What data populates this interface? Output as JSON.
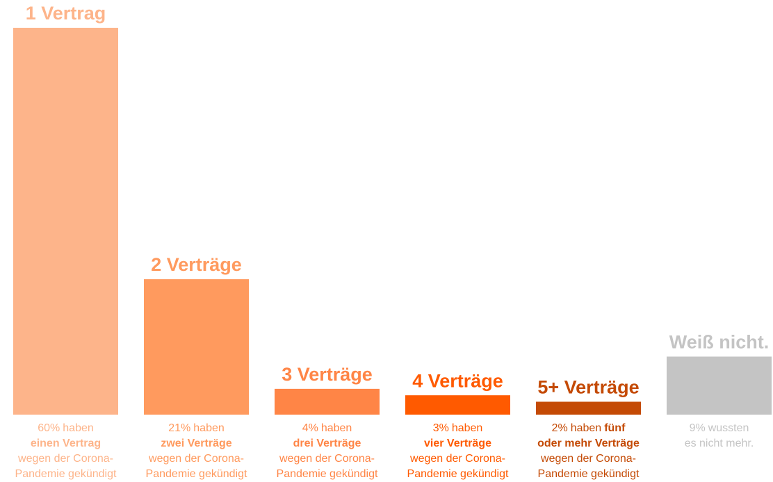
{
  "chart_data": {
    "type": "bar",
    "categories": [
      "1 Vertrag",
      "2 Verträge",
      "3 Verträge",
      "4 Verträge",
      "5+ Verträge",
      "Weiß nicht."
    ],
    "values": [
      60,
      21,
      4,
      3,
      2,
      9
    ],
    "value_labels": [
      "60%",
      "21%",
      "4%",
      "3%",
      "2%",
      "9%"
    ],
    "colors": [
      "#fdb48a",
      "#ff9a5e",
      "#ff8546",
      "#ff5a00",
      "#c44a05",
      "#c4c4c4"
    ],
    "notes": [
      [
        [
          {
            "text": "haben"
          }
        ],
        [
          {
            "text": "einen Vertrag",
            "bold": true
          }
        ],
        [
          {
            "text": "wegen der Corona-"
          }
        ],
        [
          {
            "text": "Pandemie gekündigt"
          }
        ]
      ],
      [
        [
          {
            "text": "haben"
          }
        ],
        [
          {
            "text": "zwei Verträge",
            "bold": true
          }
        ],
        [
          {
            "text": "wegen der Corona-"
          }
        ],
        [
          {
            "text": "Pandemie gekündigt"
          }
        ]
      ],
      [
        [
          {
            "text": "haben"
          }
        ],
        [
          {
            "text": "drei Verträge",
            "bold": true
          }
        ],
        [
          {
            "text": "wegen der Corona-"
          }
        ],
        [
          {
            "text": "Pandemie gekündigt"
          }
        ]
      ],
      [
        [
          {
            "text": "haben"
          }
        ],
        [
          {
            "text": "vier Verträge",
            "bold": true
          }
        ],
        [
          {
            "text": "wegen der Corona-"
          }
        ],
        [
          {
            "text": "Pandemie gekündigt"
          }
        ]
      ],
      [
        [
          {
            "text": "haben"
          },
          {
            "text": "fünf",
            "bold": true
          }
        ],
        [
          {
            "text": "oder mehr Verträge",
            "bold": true
          }
        ],
        [
          {
            "text": "wegen der Corona-"
          }
        ],
        [
          {
            "text": "Pandemie gekündigt"
          }
        ]
      ],
      [
        [
          {
            "text": "wussten"
          }
        ],
        [
          {
            "text": "es nicht mehr."
          }
        ]
      ]
    ]
  }
}
